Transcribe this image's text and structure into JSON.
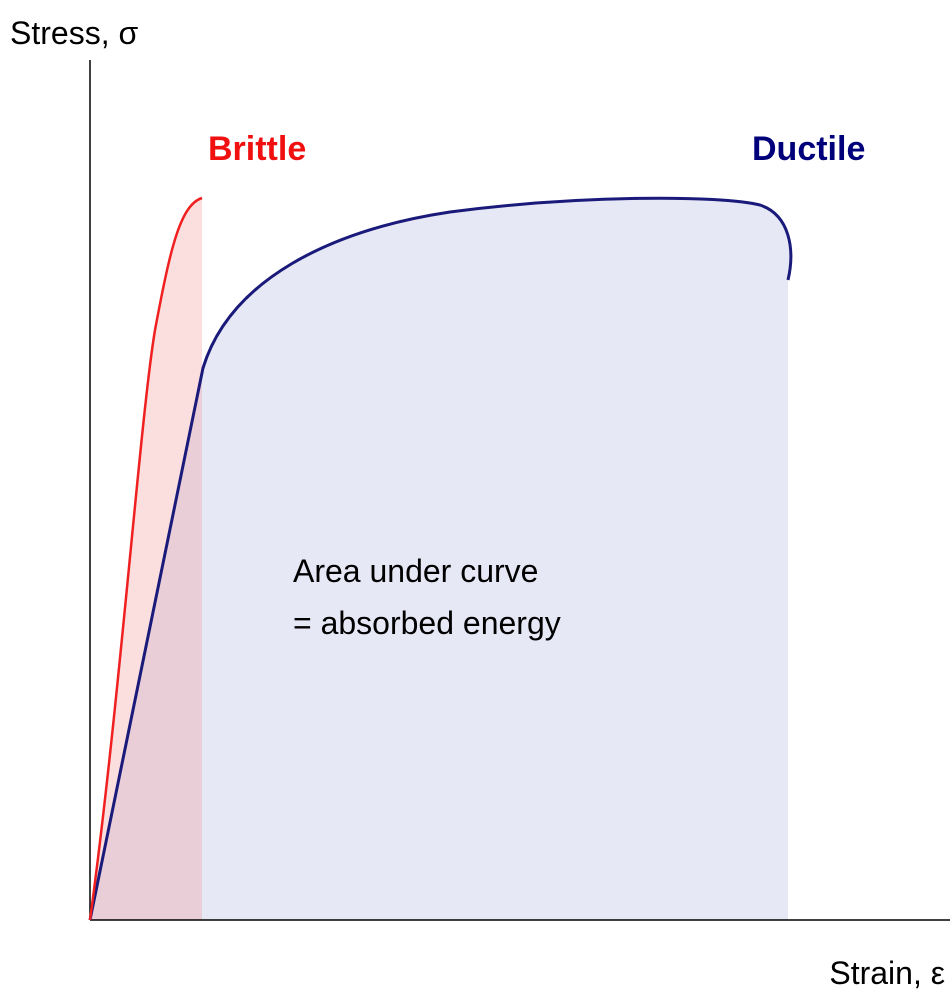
{
  "y_axis_label": "Stress, σ",
  "x_axis_label": "Strain, ε",
  "curves": [
    {
      "label": "Brittle"
    },
    {
      "label": "Ductile"
    }
  ],
  "annotation": [
    "Area under curve",
    "= absorbed energy"
  ]
}
